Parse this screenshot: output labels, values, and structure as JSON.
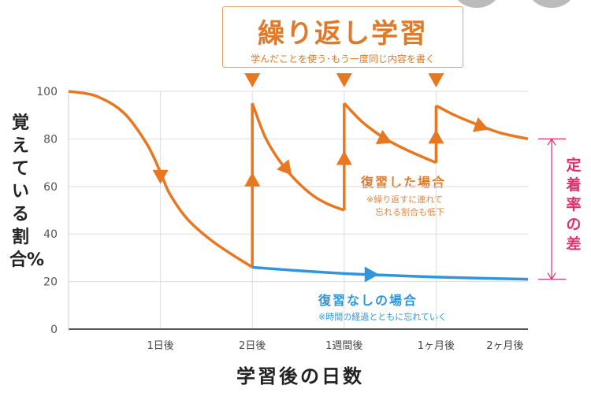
{
  "banner": {
    "title": "繰り返し学習",
    "subtitle": "学んだことを使う･もう一度同じ内容を書く"
  },
  "colors": {
    "reviewed": "#e87722",
    "not_reviewed": "#2f95dd",
    "diff": "#e0306a",
    "grid": "#dddddd"
  },
  "annotations": {
    "reviewed_title": "復習した場合",
    "reviewed_note1": "※繰り返すに連れて",
    "reviewed_note2": "忘れる割合も低下",
    "not_reviewed_title": "復習なしの場合",
    "not_reviewed_note": "※時間の経過とともに忘れていく",
    "diff_label": "定着率の差"
  },
  "chart_data": {
    "type": "line",
    "title": "繰り返し学習",
    "xlabel": "学習後の日数",
    "ylabel": "覚えている割合%",
    "ylim": [
      0,
      100
    ],
    "xlim": [
      0,
      5
    ],
    "yticks": [
      0,
      20,
      40,
      60,
      80,
      100
    ],
    "xticks": [
      {
        "x": 1,
        "label": "1日後"
      },
      {
        "x": 2,
        "label": "2日後"
      },
      {
        "x": 3,
        "label": "1週間後"
      },
      {
        "x": 4,
        "label": "1ヶ月後"
      },
      {
        "x": 4.75,
        "label": "2ヶ月後"
      }
    ],
    "grid": true,
    "series": [
      {
        "name": "復習した場合",
        "segments": [
          [
            [
              0,
              100
            ],
            [
              0.3,
              98
            ],
            [
              0.6,
              91
            ],
            [
              0.85,
              78
            ],
            [
              1,
              66
            ],
            [
              1.1,
              57
            ],
            [
              1.3,
              46
            ],
            [
              1.6,
              36
            ],
            [
              2,
              26
            ]
          ],
          [
            [
              2,
              26
            ],
            [
              2,
              95
            ]
          ],
          [
            [
              2,
              95
            ],
            [
              2.15,
              80
            ],
            [
              2.35,
              68
            ],
            [
              2.6,
              58
            ],
            [
              2.8,
              53
            ],
            [
              3,
              50
            ]
          ],
          [
            [
              3,
              50
            ],
            [
              3,
              95
            ]
          ],
          [
            [
              3,
              95
            ],
            [
              3.2,
              87
            ],
            [
              3.45,
              80
            ],
            [
              3.7,
              75
            ],
            [
              4,
              70
            ]
          ],
          [
            [
              4,
              70
            ],
            [
              4,
              94
            ]
          ],
          [
            [
              4,
              94
            ],
            [
              4.2,
              90
            ],
            [
              4.45,
              86
            ],
            [
              4.7,
              82.5
            ],
            [
              5,
              80
            ]
          ]
        ]
      },
      {
        "name": "復習なしの場合",
        "segments": [
          [
            [
              2,
              26
            ],
            [
              2.5,
              24.6
            ],
            [
              3,
              23.4
            ],
            [
              3.5,
              22.6
            ],
            [
              4,
              21.9
            ],
            [
              4.5,
              21.4
            ],
            [
              5,
              21
            ]
          ]
        ]
      }
    ],
    "review_points": [
      2,
      3,
      4
    ]
  }
}
